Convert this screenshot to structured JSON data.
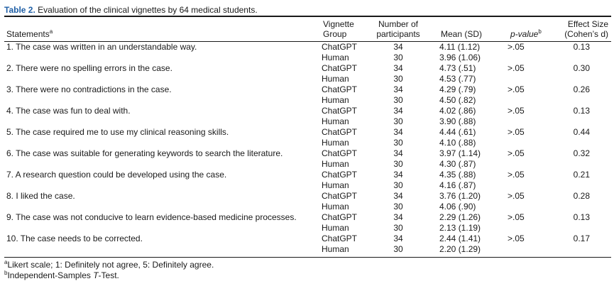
{
  "caption": {
    "label": "Table 2.",
    "text": "Evaluation of the clinical vignettes by 64 medical students."
  },
  "headers": {
    "statements": "Statements",
    "statements_sup": "a",
    "group_line1": "Vignette",
    "group_line2": "Group",
    "n_line1": "Number of",
    "n_line2": "participants",
    "mean": "Mean (SD)",
    "p": "p-value",
    "p_sup": "b",
    "es_line1": "Effect Size",
    "es_line2": "(Cohen’s d)"
  },
  "rows": [
    {
      "statement": "1. The case was written in an understandable way.",
      "g1": "ChatGPT",
      "n1": "34",
      "m1": "4.11 (1.12)",
      "g2": "Human",
      "n2": "30",
      "m2": "3.96 (1.06)",
      "p": ">.05",
      "es": "0.13"
    },
    {
      "statement": "2. There were no spelling errors in the case.",
      "g1": "ChatGPT",
      "n1": "34",
      "m1": "4.73 (.51)",
      "g2": "Human",
      "n2": "30",
      "m2": "4.53 (.77)",
      "p": ">.05",
      "es": "0.30"
    },
    {
      "statement": "3. There were no contradictions in the case.",
      "g1": "ChatGPT",
      "n1": "34",
      "m1": "4.29 (.79)",
      "g2": "Human",
      "n2": "30",
      "m2": "4.50 (.82)",
      "p": ">.05",
      "es": "0.26"
    },
    {
      "statement": "4. The case was fun to deal with.",
      "g1": "ChatGPT",
      "n1": "34",
      "m1": "4.02 (.86)",
      "g2": "Human",
      "n2": "30",
      "m2": "3.90 (.88)",
      "p": ">.05",
      "es": "0.13"
    },
    {
      "statement": "5. The case required me to use my clinical reasoning skills.",
      "g1": "ChatGPT",
      "n1": "34",
      "m1": "4.44 (.61)",
      "g2": "Human",
      "n2": "30",
      "m2": "4.10 (.88)",
      "p": ">.05",
      "es": "0.44"
    },
    {
      "statement": "6. The case was suitable for generating keywords to search the literature.",
      "g1": "ChatGPT",
      "n1": "34",
      "m1": "3.97 (1.14)",
      "g2": "Human",
      "n2": "30",
      "m2": "4.30 (.87)",
      "p": ">.05",
      "es": "0.32"
    },
    {
      "statement": "7. A research question could be developed using the case.",
      "g1": "ChatGPT",
      "n1": "34",
      "m1": "4.35 (.88)",
      "g2": "Human",
      "n2": "30",
      "m2": "4.16 (.87)",
      "p": ">.05",
      "es": "0.21"
    },
    {
      "statement": "8. I liked the case.",
      "g1": "ChatGPT",
      "n1": "34",
      "m1": "3.76 (1.20)",
      "g2": "Human",
      "n2": "30",
      "m2": "4.06 (.90)",
      "p": ">.05",
      "es": "0.28"
    },
    {
      "statement": "9. The case was not conducive to learn evidence-based medicine processes.",
      "g1": "ChatGPT",
      "n1": "34",
      "m1": "2.29 (1.26)",
      "g2": "Human",
      "n2": "30",
      "m2": "2.13 (1.19)",
      "p": ">.05",
      "es": "0.13"
    },
    {
      "statement": "10. The case needs to be corrected.",
      "g1": "ChatGPT",
      "n1": "34",
      "m1": "2.44 (1.41)",
      "g2": "Human",
      "n2": "30",
      "m2": "2.20 (1.29)",
      "p": ">.05",
      "es": "0.17"
    }
  ],
  "notes": {
    "a_sup": "a",
    "a_text": "Likert scale; 1: Definitely not agree, 5: Definitely agree.",
    "b_sup": "b",
    "b_text_1": "Independent-Samples ",
    "b_text_t": "T",
    "b_text_2": "-Test."
  }
}
